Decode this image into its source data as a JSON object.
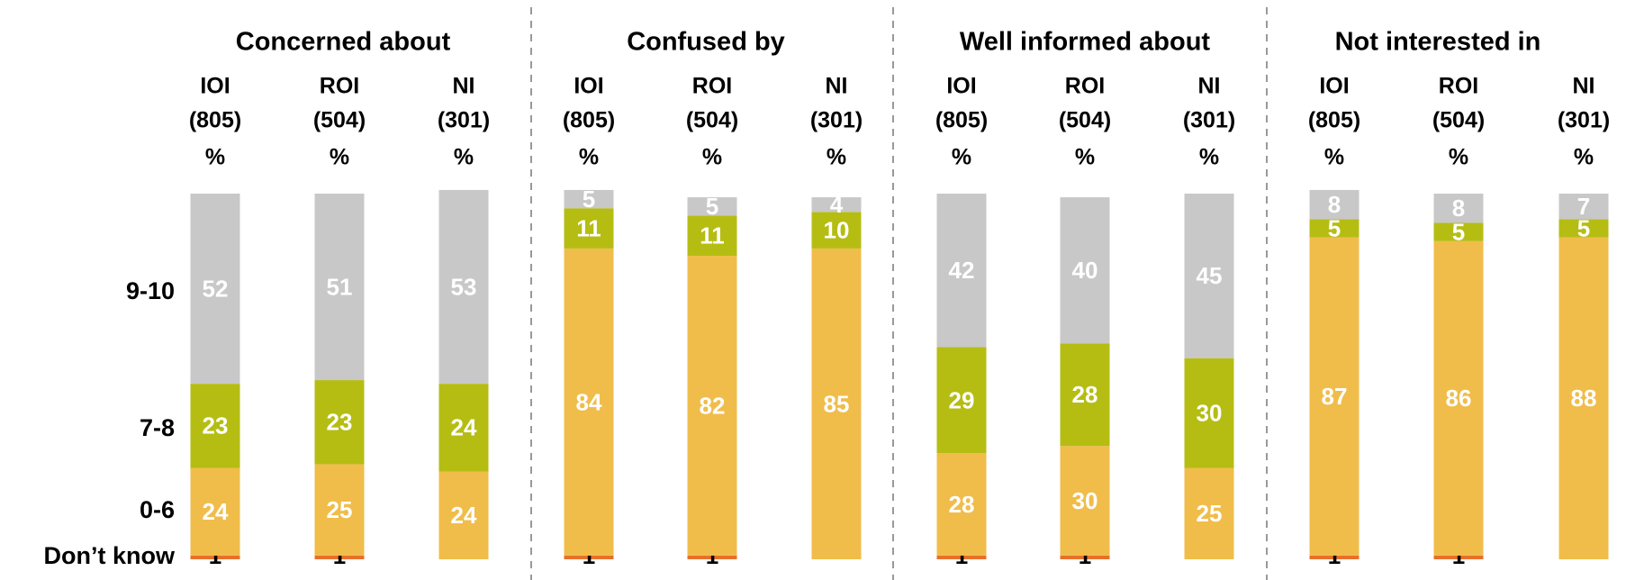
{
  "chart_data": [
    {
      "type": "bar",
      "stacked": true,
      "title": "Concerned about",
      "categories": [
        "IOI",
        "ROI",
        "NI"
      ],
      "bases": [
        "(805)",
        "(504)",
        "(301)"
      ],
      "unit_label": "%",
      "ylim": [
        0,
        100
      ],
      "series": [
        {
          "name": "Don’t know",
          "color": "#e8702a",
          "values": [
            1,
            1,
            0
          ],
          "value_labels": [
            "1",
            "1",
            "-"
          ]
        },
        {
          "name": "0-6",
          "color": "#f0bd4b",
          "values": [
            24,
            25,
            24
          ]
        },
        {
          "name": "7-8",
          "color": "#b5bd13",
          "values": [
            23,
            23,
            24
          ]
        },
        {
          "name": "9-10",
          "color": "#c8c8c8",
          "values": [
            52,
            51,
            53
          ]
        }
      ]
    },
    {
      "type": "bar",
      "stacked": true,
      "title": "Confused by",
      "categories": [
        "IOI",
        "ROI",
        "NI"
      ],
      "bases": [
        "(805)",
        "(504)",
        "(301)"
      ],
      "unit_label": "%",
      "ylim": [
        0,
        100
      ],
      "series": [
        {
          "name": "Don’t know",
          "color": "#e8702a",
          "values": [
            1,
            1,
            0
          ],
          "value_labels": [
            "1",
            "1",
            "-"
          ]
        },
        {
          "name": "0-6",
          "color": "#f0bd4b",
          "values": [
            84,
            82,
            85
          ]
        },
        {
          "name": "7-8",
          "color": "#b5bd13",
          "values": [
            11,
            11,
            10
          ]
        },
        {
          "name": "9-10",
          "color": "#c8c8c8",
          "values": [
            5,
            5,
            4
          ]
        }
      ]
    },
    {
      "type": "bar",
      "stacked": true,
      "title": "Well informed about",
      "categories": [
        "IOI",
        "ROI",
        "NI"
      ],
      "bases": [
        "(805)",
        "(504)",
        "(301)"
      ],
      "unit_label": "%",
      "ylim": [
        0,
        100
      ],
      "series": [
        {
          "name": "Don’t know",
          "color": "#e8702a",
          "values": [
            1,
            1,
            0
          ],
          "value_labels": [
            "1",
            "1",
            "-"
          ]
        },
        {
          "name": "0-6",
          "color": "#f0bd4b",
          "values": [
            28,
            30,
            25
          ]
        },
        {
          "name": "7-8",
          "color": "#b5bd13",
          "values": [
            29,
            28,
            30
          ]
        },
        {
          "name": "9-10",
          "color": "#c8c8c8",
          "values": [
            42,
            40,
            45
          ]
        }
      ]
    },
    {
      "type": "bar",
      "stacked": true,
      "title": "Not interested in",
      "categories": [
        "IOI",
        "ROI",
        "NI"
      ],
      "bases": [
        "(805)",
        "(504)",
        "(301)"
      ],
      "unit_label": "%",
      "ylim": [
        0,
        100
      ],
      "series": [
        {
          "name": "Don’t know",
          "color": "#e8702a",
          "values": [
            1,
            1,
            0
          ],
          "value_labels": [
            "1",
            "1",
            "-"
          ]
        },
        {
          "name": "0-6",
          "color": "#f0bd4b",
          "values": [
            87,
            86,
            88
          ]
        },
        {
          "name": "7-8",
          "color": "#b5bd13",
          "values": [
            5,
            5,
            5
          ]
        },
        {
          "name": "9-10",
          "color": "#c8c8c8",
          "values": [
            8,
            8,
            7
          ]
        }
      ]
    }
  ]
}
